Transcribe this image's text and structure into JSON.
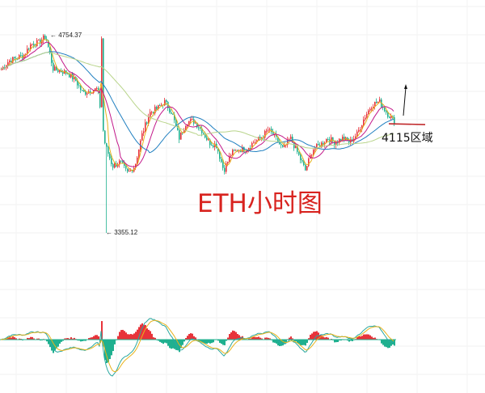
{
  "chart_data": {
    "type": "candlestick",
    "title": "ETH小时图",
    "annotations": {
      "high_label": "← 4754.37",
      "low_label": "← 3355.12",
      "zone_label": "4115区域",
      "zone_price": 4115
    },
    "high": 4754.37,
    "low": 3355.12,
    "close_path": [
      4520,
      4580,
      4600,
      4620,
      4700,
      4710,
      4754,
      4520,
      4510,
      4490,
      4440,
      4350,
      4370,
      4380,
      3980,
      3830,
      3860,
      3780,
      3830,
      4060,
      4210,
      4240,
      4290,
      4210,
      4030,
      4150,
      4150,
      4090,
      4000,
      3980,
      3800,
      3920,
      3950,
      3950,
      4000,
      4030,
      4090,
      4030,
      3950,
      4030,
      3920,
      3800,
      3950,
      3980,
      4030,
      4000,
      4030,
      4000,
      4060,
      4180,
      4270,
      4290,
      4210,
      4150
    ],
    "moving_averages": [
      {
        "color": "#e8b21c"
      },
      {
        "color": "#c2188a"
      },
      {
        "color": "#1f7fc0"
      },
      {
        "color": "#b8d48a"
      }
    ],
    "indicator": "MACD",
    "colors": {
      "up": "#e8333a",
      "down": "#1fb08f",
      "dif": "#2aa8a0",
      "dea": "#e8b21c",
      "title": "#d8231f",
      "zone_line": "#c0282a"
    },
    "grid": true
  }
}
